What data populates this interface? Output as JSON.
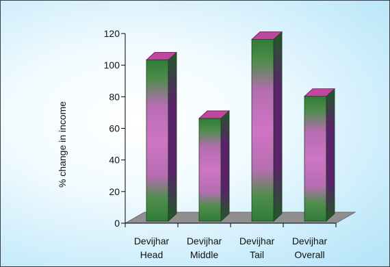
{
  "chart_data": {
    "type": "bar",
    "style": "3d",
    "categories": [
      [
        "Devijhar",
        "Head"
      ],
      [
        "Devijhar",
        "Middle"
      ],
      [
        "Devijhar",
        "Tail"
      ],
      [
        "Devijhar",
        "Overall"
      ]
    ],
    "values": [
      102,
      65,
      115,
      79
    ],
    "title": "",
    "xlabel": "",
    "ylabel": "% change in income",
    "ylim": [
      0,
      120
    ],
    "yticks": [
      0,
      20,
      40,
      60,
      80,
      100,
      120
    ],
    "grid": false,
    "legend": "none",
    "colors": {
      "bar_dark": "#2f7d37",
      "bar_light": "#c96fbf",
      "bar_top": "#c0479e",
      "bar_side": "#5b1f6e",
      "floor": "#8f8f8f",
      "background": "#c9ecfb"
    }
  }
}
